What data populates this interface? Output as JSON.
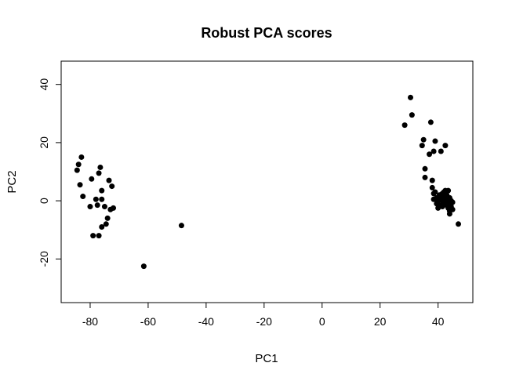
{
  "chart_data": {
    "type": "scatter",
    "title": "Robust PCA scores",
    "xlabel": "PC1",
    "ylabel": "PC2",
    "xlim": [
      -90,
      52
    ],
    "ylim": [
      -35,
      48
    ],
    "xticks": [
      -80,
      -60,
      -40,
      -20,
      0,
      20,
      40
    ],
    "yticks": [
      -20,
      0,
      20,
      40
    ],
    "grid": false,
    "point_color": "#000000",
    "points": [
      {
        "x": -84,
        "y": 12.5
      },
      {
        "x": -84.5,
        "y": 10.5
      },
      {
        "x": -83,
        "y": 15
      },
      {
        "x": -83.5,
        "y": 5.5
      },
      {
        "x": -82.5,
        "y": 1.5
      },
      {
        "x": -80,
        "y": -2
      },
      {
        "x": -79.5,
        "y": 7.5
      },
      {
        "x": -79,
        "y": -12
      },
      {
        "x": -78,
        "y": 0.5
      },
      {
        "x": -77.5,
        "y": -1.5
      },
      {
        "x": -77,
        "y": 9.5
      },
      {
        "x": -76.5,
        "y": 11.5
      },
      {
        "x": -76,
        "y": -9
      },
      {
        "x": -77,
        "y": -12
      },
      {
        "x": -76,
        "y": 3.5
      },
      {
        "x": -76,
        "y": 0.5
      },
      {
        "x": -75,
        "y": -2
      },
      {
        "x": -74.5,
        "y": -8
      },
      {
        "x": -74,
        "y": -6
      },
      {
        "x": -73.5,
        "y": 7
      },
      {
        "x": -73,
        "y": -3
      },
      {
        "x": -72.5,
        "y": 5
      },
      {
        "x": -72,
        "y": -2.5
      },
      {
        "x": -61.5,
        "y": -22.5
      },
      {
        "x": -48.5,
        "y": -8.5
      },
      {
        "x": 28.5,
        "y": 26
      },
      {
        "x": 30.5,
        "y": 35.5
      },
      {
        "x": 31,
        "y": 29.5
      },
      {
        "x": 34.5,
        "y": 19
      },
      {
        "x": 35,
        "y": 21
      },
      {
        "x": 35.5,
        "y": 11
      },
      {
        "x": 35.5,
        "y": 8
      },
      {
        "x": 37,
        "y": 16
      },
      {
        "x": 37.5,
        "y": 27
      },
      {
        "x": 38,
        "y": 7
      },
      {
        "x": 38.5,
        "y": 17
      },
      {
        "x": 39,
        "y": 20.5
      },
      {
        "x": 41,
        "y": 17
      },
      {
        "x": 42.5,
        "y": 19
      },
      {
        "x": 38,
        "y": 4.5
      },
      {
        "x": 38.5,
        "y": 2.5
      },
      {
        "x": 38.5,
        "y": 0.5
      },
      {
        "x": 39,
        "y": 3
      },
      {
        "x": 39.5,
        "y": 1
      },
      {
        "x": 39.5,
        "y": -1
      },
      {
        "x": 40,
        "y": 0
      },
      {
        "x": 40.5,
        "y": 2
      },
      {
        "x": 40.5,
        "y": -1.5
      },
      {
        "x": 41,
        "y": 0.5
      },
      {
        "x": 41,
        "y": 1.5
      },
      {
        "x": 41.5,
        "y": -2
      },
      {
        "x": 41.5,
        "y": 0
      },
      {
        "x": 42,
        "y": 3
      },
      {
        "x": 42,
        "y": 1
      },
      {
        "x": 42,
        "y": -1
      },
      {
        "x": 42.5,
        "y": 3.5
      },
      {
        "x": 42.5,
        "y": -0.5
      },
      {
        "x": 43,
        "y": 2
      },
      {
        "x": 43,
        "y": 0.5
      },
      {
        "x": 43,
        "y": -1.5
      },
      {
        "x": 43.5,
        "y": 3.5
      },
      {
        "x": 43.5,
        "y": -2.5
      },
      {
        "x": 43.5,
        "y": -0.5
      },
      {
        "x": 44,
        "y": 1
      },
      {
        "x": 44,
        "y": -3.5
      },
      {
        "x": 44,
        "y": -4.5
      },
      {
        "x": 44.5,
        "y": -1
      },
      {
        "x": 44.5,
        "y": 0
      },
      {
        "x": 45,
        "y": -3
      },
      {
        "x": 45,
        "y": -0.5
      },
      {
        "x": 44.5,
        "y": -2
      },
      {
        "x": 47,
        "y": -8
      },
      {
        "x": 40,
        "y": -2.5
      },
      {
        "x": 41.5,
        "y": 2.5
      },
      {
        "x": 42.5,
        "y": 1.5
      }
    ]
  }
}
